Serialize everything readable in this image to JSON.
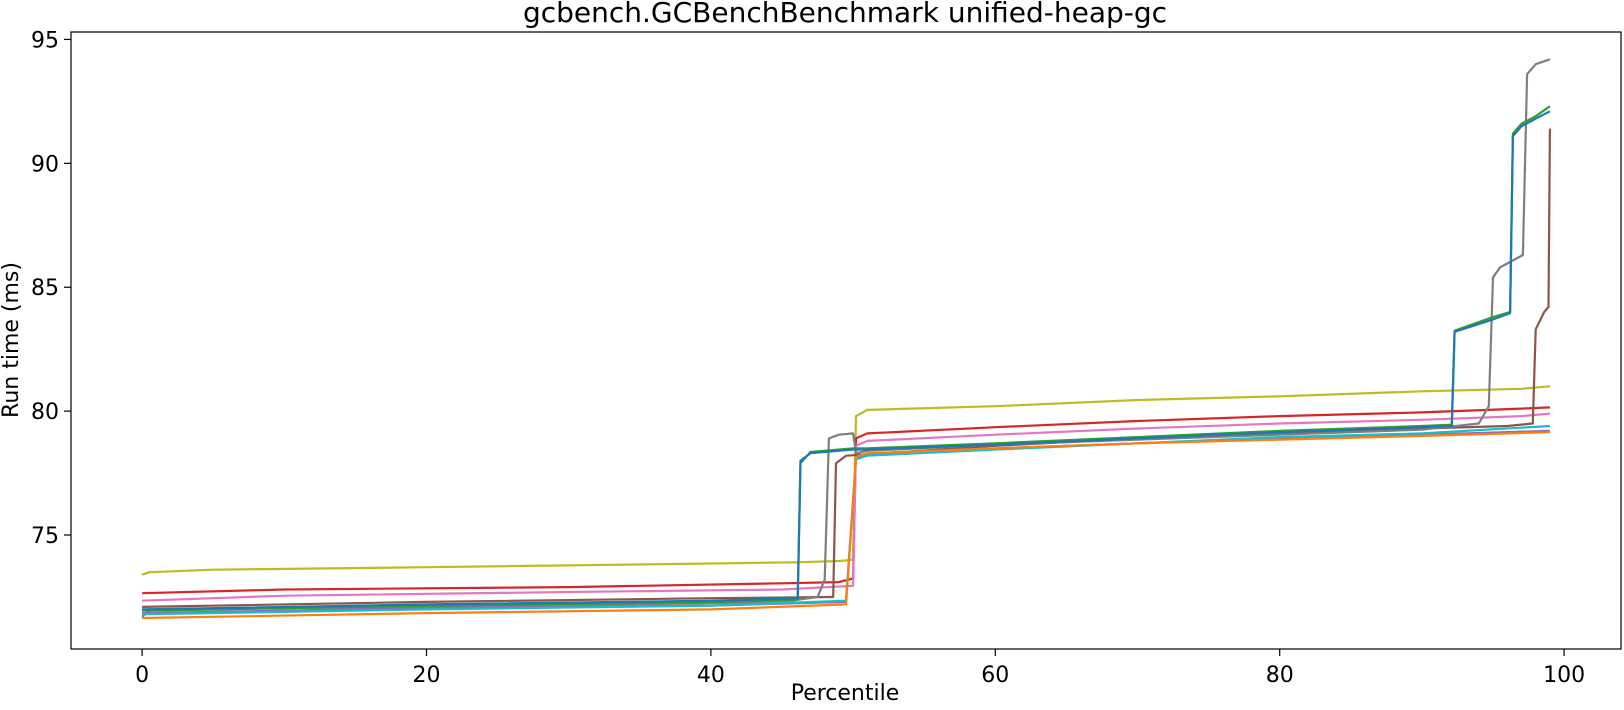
{
  "chart_data": {
    "type": "line",
    "title": "gcbench.GCBenchBenchmark unified-heap-gc",
    "xlabel": "Percentile",
    "ylabel": "Run time (ms)",
    "xlim": [
      -5,
      104
    ],
    "ylim": [
      70.4,
      95.3
    ],
    "xticks": [
      0,
      20,
      40,
      60,
      80,
      100
    ],
    "yticks": [
      75,
      80,
      85,
      90,
      95
    ],
    "grid": false,
    "legend": "none",
    "series": [
      {
        "color": "#bcbd22",
        "points": [
          [
            0,
            73.4
          ],
          [
            0.5,
            73.5
          ],
          [
            5,
            73.6
          ],
          [
            20,
            73.7
          ],
          [
            40,
            73.85
          ],
          [
            46,
            73.9
          ],
          [
            49,
            73.95
          ],
          [
            50,
            74.0
          ],
          [
            50.2,
            79.8
          ],
          [
            51,
            80.05
          ],
          [
            60,
            80.2
          ],
          [
            70,
            80.45
          ],
          [
            80,
            80.6
          ],
          [
            90,
            80.8
          ],
          [
            97,
            80.9
          ],
          [
            99,
            81.0
          ]
        ]
      },
      {
        "color": "#d62728",
        "points": [
          [
            0,
            72.65
          ],
          [
            10,
            72.8
          ],
          [
            30,
            72.9
          ],
          [
            45,
            73.05
          ],
          [
            49,
            73.1
          ],
          [
            50,
            73.25
          ],
          [
            50.2,
            78.9
          ],
          [
            51,
            79.1
          ],
          [
            60,
            79.35
          ],
          [
            70,
            79.6
          ],
          [
            80,
            79.8
          ],
          [
            90,
            79.95
          ],
          [
            97,
            80.1
          ],
          [
            99,
            80.15
          ]
        ]
      },
      {
        "color": "#e377c2",
        "points": [
          [
            0,
            72.35
          ],
          [
            10,
            72.55
          ],
          [
            30,
            72.7
          ],
          [
            45,
            72.8
          ],
          [
            50,
            72.95
          ],
          [
            50.2,
            78.6
          ],
          [
            51,
            78.8
          ],
          [
            60,
            79.05
          ],
          [
            70,
            79.3
          ],
          [
            80,
            79.5
          ],
          [
            90,
            79.65
          ],
          [
            97,
            79.8
          ],
          [
            99,
            79.9
          ]
        ]
      },
      {
        "color": "#8c564b",
        "points": [
          [
            0,
            72.1
          ],
          [
            20,
            72.3
          ],
          [
            40,
            72.45
          ],
          [
            48.6,
            72.5
          ],
          [
            48.8,
            77.9
          ],
          [
            49.5,
            78.2
          ],
          [
            60,
            78.6
          ],
          [
            70,
            78.9
          ],
          [
            80,
            79.1
          ],
          [
            90,
            79.3
          ],
          [
            96,
            79.4
          ],
          [
            97.8,
            79.5
          ],
          [
            98.0,
            83.3
          ],
          [
            98.6,
            84.0
          ],
          [
            98.9,
            84.2
          ],
          [
            99,
            91.4
          ]
        ]
      },
      {
        "color": "#7f7f7f",
        "points": [
          [
            0,
            71.7
          ],
          [
            0.5,
            71.95
          ],
          [
            10,
            72.05
          ],
          [
            30,
            72.15
          ],
          [
            45,
            72.3
          ],
          [
            47.5,
            72.5
          ],
          [
            48.0,
            73.2
          ],
          [
            48.3,
            78.9
          ],
          [
            49,
            79.05
          ],
          [
            50,
            79.1
          ],
          [
            50.2,
            78.3
          ],
          [
            51,
            78.4
          ],
          [
            60,
            78.65
          ],
          [
            70,
            78.85
          ],
          [
            80,
            79.05
          ],
          [
            90,
            79.25
          ],
          [
            94,
            79.5
          ],
          [
            94.7,
            80.2
          ],
          [
            95.0,
            85.4
          ],
          [
            95.5,
            85.8
          ],
          [
            97.1,
            86.3
          ],
          [
            97.4,
            93.6
          ],
          [
            98,
            94.0
          ],
          [
            99,
            94.2
          ]
        ]
      },
      {
        "color": "#9467bd",
        "points": [
          [
            0,
            71.85
          ],
          [
            20,
            72.05
          ],
          [
            40,
            72.15
          ],
          [
            49.5,
            72.3
          ],
          [
            50.2,
            78.1
          ],
          [
            51,
            78.25
          ],
          [
            60,
            78.5
          ],
          [
            70,
            78.7
          ],
          [
            80,
            78.9
          ],
          [
            90,
            79.05
          ],
          [
            99,
            79.2
          ]
        ]
      },
      {
        "color": "#17becf",
        "points": [
          [
            0,
            71.8
          ],
          [
            20,
            72.0
          ],
          [
            40,
            72.15
          ],
          [
            49.5,
            72.35
          ],
          [
            50.2,
            78.05
          ],
          [
            51,
            78.2
          ],
          [
            60,
            78.45
          ],
          [
            70,
            78.7
          ],
          [
            80,
            78.95
          ],
          [
            90,
            79.1
          ],
          [
            99,
            79.4
          ]
        ]
      },
      {
        "color": "#ff7f0e",
        "points": [
          [
            0,
            71.65
          ],
          [
            20,
            71.85
          ],
          [
            40,
            72.0
          ],
          [
            49.5,
            72.2
          ],
          [
            50.2,
            78.15
          ],
          [
            51,
            78.3
          ],
          [
            60,
            78.5
          ],
          [
            70,
            78.7
          ],
          [
            80,
            78.85
          ],
          [
            90,
            79.0
          ],
          [
            99,
            79.15
          ]
        ]
      },
      {
        "color": "#2ca02c",
        "points": [
          [
            0,
            71.95
          ],
          [
            20,
            72.15
          ],
          [
            40,
            72.3
          ],
          [
            46.1,
            72.4
          ],
          [
            46.3,
            77.9
          ],
          [
            47,
            78.35
          ],
          [
            50,
            78.5
          ],
          [
            51,
            78.5
          ],
          [
            60,
            78.7
          ],
          [
            70,
            78.95
          ],
          [
            80,
            79.2
          ],
          [
            90,
            79.4
          ],
          [
            92.1,
            79.45
          ],
          [
            92.3,
            83.25
          ],
          [
            95,
            83.8
          ],
          [
            96.2,
            84.0
          ],
          [
            96.4,
            91.2
          ],
          [
            97,
            91.6
          ],
          [
            98,
            91.9
          ],
          [
            99,
            92.3
          ]
        ]
      },
      {
        "color": "#1f77b4",
        "points": [
          [
            0,
            72.0
          ],
          [
            20,
            72.2
          ],
          [
            40,
            72.35
          ],
          [
            46.1,
            72.45
          ],
          [
            46.3,
            78.0
          ],
          [
            47,
            78.3
          ],
          [
            50,
            78.45
          ],
          [
            51,
            78.45
          ],
          [
            60,
            78.65
          ],
          [
            70,
            78.9
          ],
          [
            80,
            79.15
          ],
          [
            90,
            79.35
          ],
          [
            92.1,
            79.4
          ],
          [
            92.3,
            83.2
          ],
          [
            95,
            83.7
          ],
          [
            96.2,
            83.95
          ],
          [
            96.4,
            91.1
          ],
          [
            97,
            91.5
          ],
          [
            98,
            91.8
          ],
          [
            99,
            92.1
          ]
        ]
      }
    ]
  }
}
